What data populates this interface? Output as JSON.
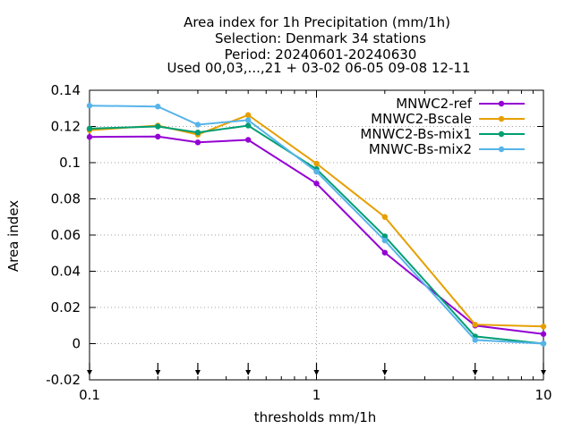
{
  "chart_data": {
    "type": "line",
    "title_lines": [
      "Area index  for 1h Precipitation (mm/1h)",
      "Selection: Denmark     34 stations",
      "Period: 20240601-20240630",
      "Used 00,03,...,21 + 03-02 06-05 09-08 12-11"
    ],
    "xlabel": "thresholds mm/1h",
    "ylabel": "Area index",
    "xscale": "log",
    "xlim": [
      0.1,
      10
    ],
    "ylim": [
      -0.02,
      0.14
    ],
    "x_ticks": [
      0.1,
      1,
      10
    ],
    "x_tick_labels": [
      "0.1",
      "1",
      "10"
    ],
    "y_ticks": [
      -0.02,
      0,
      0.02,
      0.04,
      0.06,
      0.08,
      0.1,
      0.12,
      0.14
    ],
    "y_tick_labels": [
      "-0.02",
      "0",
      "0.02",
      "0.04",
      "0.06",
      "0.08",
      "0.1",
      "0.12",
      "0.14"
    ],
    "grid": true,
    "legend_position": "top-right",
    "arrow_markers_x": [
      0.1,
      0.2,
      0.3,
      0.5,
      1,
      2,
      5,
      10
    ],
    "x": [
      0.1,
      0.2,
      0.3,
      0.5,
      1,
      2,
      5,
      10
    ],
    "series": [
      {
        "name": "MNWC2-ref",
        "color": "#9400d3",
        "values": [
          0.1142,
          0.1144,
          0.1112,
          0.1126,
          0.0885,
          0.0503,
          0.01,
          0.0053
        ]
      },
      {
        "name": "MNWC2-Bscale",
        "color": "#e69f00",
        "values": [
          0.118,
          0.1205,
          0.1155,
          0.1263,
          0.0995,
          0.07,
          0.0105,
          0.0095
        ]
      },
      {
        "name": "MNWC2-Bs-mix1",
        "color": "#009e73",
        "values": [
          0.1188,
          0.12,
          0.1167,
          0.1205,
          0.0965,
          0.0593,
          0.004,
          0.0
        ]
      },
      {
        "name": "MNWC-Bs-mix2",
        "color": "#56b4e9",
        "values": [
          0.1315,
          0.131,
          0.121,
          0.1235,
          0.095,
          0.057,
          0.002,
          0.0
        ]
      }
    ]
  }
}
